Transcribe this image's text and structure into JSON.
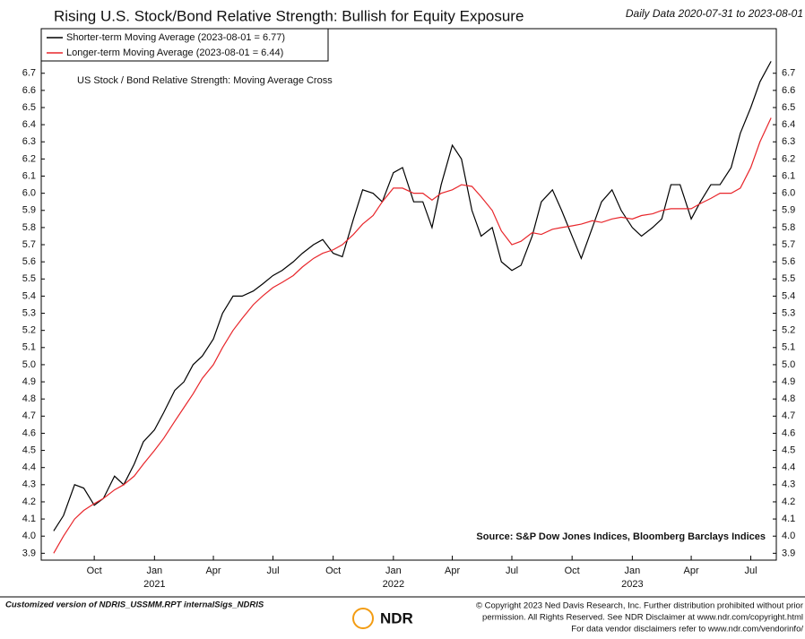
{
  "chart_data": {
    "type": "line",
    "title": "Rising U.S. Stock/Bond Relative Strength: Bullish for Equity Exposure",
    "subtitle": "Daily Data 2020-07-31 to 2023-08-01",
    "annotation": "US Stock / Bond Relative Strength: Moving Average Cross",
    "source": "Source: S&P Dow Jones Indices, Bloomberg Barclays Indices",
    "footer_left": "Customized version of NDRIS_USSMM.RPT internalSigs_NDRIS",
    "logo": "NDR",
    "copyright": [
      "© Copyright 2023 Ned Davis Research, Inc. Further distribution prohibited without prior",
      "permission. All Rights Reserved. See NDR Disclaimer at www.ndr.com/copyright.html",
      "For data vendor disclaimers refer to www.ndr.com/vendorinfo/"
    ],
    "x": [
      "2020-07-31",
      "2020-08-15",
      "2020-09-01",
      "2020-09-15",
      "2020-10-01",
      "2020-10-15",
      "2020-11-01",
      "2020-11-15",
      "2020-12-01",
      "2020-12-15",
      "2021-01-01",
      "2021-01-15",
      "2021-02-01",
      "2021-02-15",
      "2021-03-01",
      "2021-03-15",
      "2021-04-01",
      "2021-04-15",
      "2021-05-01",
      "2021-05-15",
      "2021-06-01",
      "2021-06-15",
      "2021-07-01",
      "2021-07-15",
      "2021-08-01",
      "2021-08-15",
      "2021-09-01",
      "2021-09-15",
      "2021-10-01",
      "2021-10-15",
      "2021-11-01",
      "2021-11-15",
      "2021-12-01",
      "2021-12-15",
      "2022-01-01",
      "2022-01-15",
      "2022-02-01",
      "2022-02-15",
      "2022-03-01",
      "2022-03-15",
      "2022-04-01",
      "2022-04-15",
      "2022-05-01",
      "2022-05-15",
      "2022-06-01",
      "2022-06-15",
      "2022-07-01",
      "2022-07-15",
      "2022-08-01",
      "2022-08-15",
      "2022-09-01",
      "2022-09-15",
      "2022-10-01",
      "2022-10-15",
      "2022-11-01",
      "2022-11-15",
      "2022-12-01",
      "2022-12-15",
      "2023-01-01",
      "2023-01-15",
      "2023-02-01",
      "2023-02-15",
      "2023-03-01",
      "2023-03-15",
      "2023-04-01",
      "2023-04-15",
      "2023-05-01",
      "2023-05-15",
      "2023-06-01",
      "2023-06-15",
      "2023-07-01",
      "2023-07-15",
      "2023-08-01"
    ],
    "series": [
      {
        "name": "Shorter-term Moving Average (2023-08-01 = 6.77)",
        "color": "#000000",
        "values": [
          4.03,
          4.12,
          4.3,
          4.28,
          4.18,
          4.22,
          4.35,
          4.3,
          4.42,
          4.55,
          4.62,
          4.72,
          4.85,
          4.9,
          5.0,
          5.05,
          5.15,
          5.3,
          5.4,
          5.4,
          5.43,
          5.47,
          5.52,
          5.55,
          5.6,
          5.65,
          5.7,
          5.73,
          5.65,
          5.63,
          5.85,
          6.02,
          6.0,
          5.95,
          6.12,
          6.15,
          5.95,
          5.95,
          5.8,
          6.05,
          6.28,
          6.2,
          5.9,
          5.75,
          5.8,
          5.6,
          5.55,
          5.58,
          5.75,
          5.95,
          6.02,
          5.9,
          5.75,
          5.62,
          5.8,
          5.95,
          6.02,
          5.9,
          5.8,
          5.75,
          5.8,
          5.85,
          6.05,
          6.05,
          5.85,
          5.95,
          6.05,
          6.05,
          6.15,
          6.35,
          6.5,
          6.65,
          6.77
        ]
      },
      {
        "name": "Longer-term Moving Average (2023-08-01 = 6.44)",
        "color": "#e8262b",
        "values": [
          3.9,
          4.0,
          4.1,
          4.15,
          4.19,
          4.22,
          4.27,
          4.3,
          4.35,
          4.42,
          4.5,
          4.57,
          4.67,
          4.75,
          4.83,
          4.92,
          5.0,
          5.1,
          5.2,
          5.27,
          5.35,
          5.4,
          5.45,
          5.48,
          5.52,
          5.57,
          5.62,
          5.65,
          5.67,
          5.7,
          5.76,
          5.82,
          5.87,
          5.95,
          6.03,
          6.03,
          6.0,
          6.0,
          5.96,
          6.0,
          6.02,
          6.05,
          6.04,
          5.98,
          5.9,
          5.78,
          5.7,
          5.72,
          5.77,
          5.76,
          5.79,
          5.8,
          5.81,
          5.82,
          5.84,
          5.83,
          5.85,
          5.86,
          5.85,
          5.87,
          5.88,
          5.9,
          5.91,
          5.91,
          5.91,
          5.94,
          5.97,
          6.0,
          6.0,
          6.03,
          6.15,
          6.3,
          6.44
        ]
      }
    ],
    "xlim": [
      "2020-07-12",
      "2023-08-09"
    ],
    "xticks": [
      {
        "value": "2020-10-01",
        "label": "Oct"
      },
      {
        "value": "2021-01-01",
        "label": "Jan"
      },
      {
        "value": "2021-04-01",
        "label": "Apr"
      },
      {
        "value": "2021-07-01",
        "label": "Jul"
      },
      {
        "value": "2021-10-01",
        "label": "Oct"
      },
      {
        "value": "2022-01-01",
        "label": "Jan"
      },
      {
        "value": "2022-04-01",
        "label": "Apr"
      },
      {
        "value": "2022-07-01",
        "label": "Jul"
      },
      {
        "value": "2022-10-01",
        "label": "Oct"
      },
      {
        "value": "2023-01-01",
        "label": "Jan"
      },
      {
        "value": "2023-04-01",
        "label": "Apr"
      },
      {
        "value": "2023-07-01",
        "label": "Jul"
      }
    ],
    "xtick_years": [
      {
        "value": "2021-01-01",
        "label": "2021"
      },
      {
        "value": "2022-01-01",
        "label": "2022"
      },
      {
        "value": "2023-01-01",
        "label": "2023"
      }
    ],
    "ylim": [
      3.86,
      6.96
    ],
    "yticks": [
      3.9,
      {
        "value": 4,
        "label": "4.0"
      },
      4.1,
      4.2,
      4.3,
      4.4,
      4.5,
      4.6,
      4.7,
      4.8,
      4.9,
      {
        "value": 5,
        "label": "5.0"
      },
      5.1,
      5.2,
      5.3,
      5.4,
      5.5,
      5.6,
      5.7,
      5.8,
      5.9,
      {
        "value": 6,
        "label": "6.0"
      },
      6.1,
      6.2,
      6.3,
      6.4,
      6.5,
      6.6,
      6.7
    ],
    "grid": false,
    "legend": "upper left"
  }
}
